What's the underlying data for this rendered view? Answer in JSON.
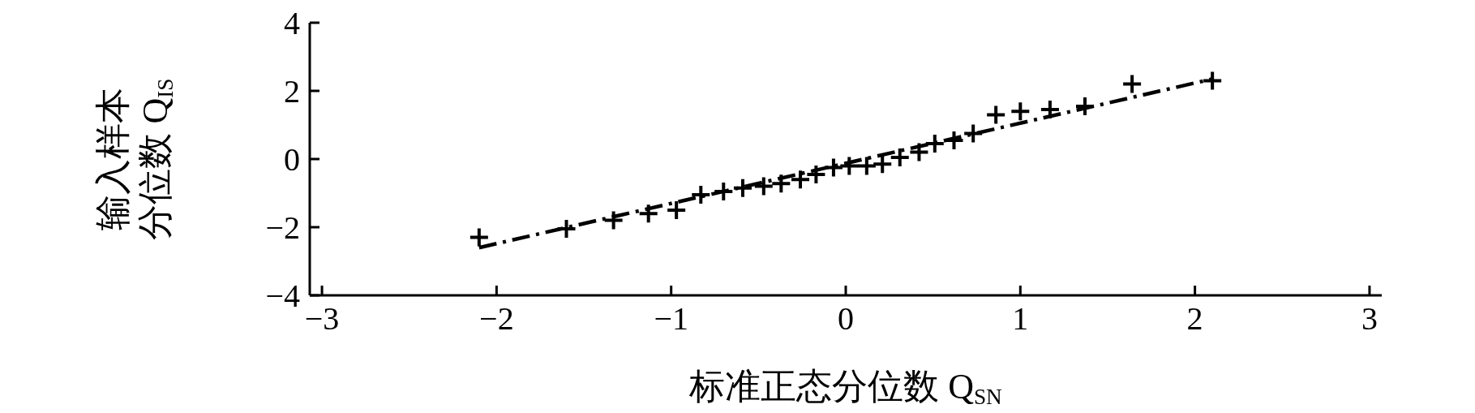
{
  "chart_data": {
    "type": "scatter",
    "xlabel": "标准正态分位数 Q$_{SN}$",
    "ylabel": "输入样本分位数 Q$_{IS}$",
    "xlim": [
      -3.07,
      3.07
    ],
    "ylim": [
      -4,
      4
    ],
    "xticks": [
      -3,
      -2,
      -1,
      0,
      1,
      2,
      3
    ],
    "yticks": [
      -4,
      -2,
      0,
      2,
      4
    ],
    "grid": false,
    "marker": "cross",
    "series": [
      {
        "type": "scatter",
        "color": "#000000",
        "x": [
          -2.1,
          -1.6,
          -1.33,
          -1.13,
          -0.97,
          -0.83,
          -0.7,
          -0.59,
          -0.47,
          -0.37,
          -0.26,
          -0.17,
          -0.07,
          0.02,
          0.12,
          0.21,
          0.31,
          0.42,
          0.51,
          0.62,
          0.73,
          0.86,
          1.0,
          1.17,
          1.37,
          1.64,
          2.1
        ],
        "values": [
          -2.3,
          -2.05,
          -1.8,
          -1.6,
          -1.5,
          -1.05,
          -0.95,
          -0.85,
          -0.8,
          -0.72,
          -0.6,
          -0.45,
          -0.25,
          -0.2,
          -0.2,
          -0.15,
          0.05,
          0.2,
          0.45,
          0.55,
          0.75,
          1.3,
          1.4,
          1.45,
          1.55,
          2.2,
          2.3
        ]
      },
      {
        "type": "line",
        "color": "#000000",
        "line_style": "dashed",
        "marker": "none",
        "x": [
          -2.1,
          2.1
        ],
        "values": [
          -2.6,
          2.35
        ]
      }
    ]
  }
}
